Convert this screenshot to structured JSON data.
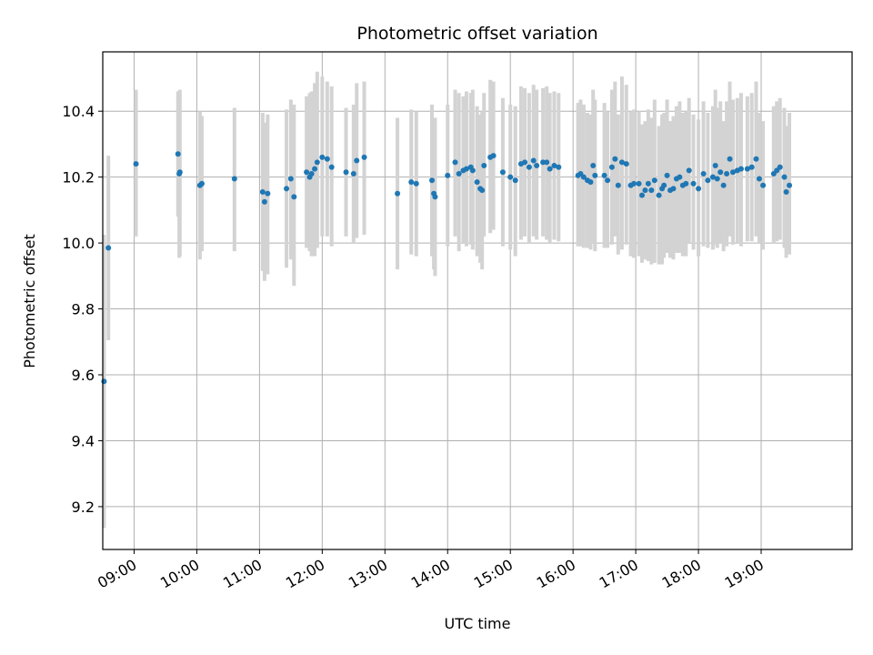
{
  "chart_data": {
    "type": "scatter",
    "title": "Photometric offset variation",
    "xlabel": "UTC time",
    "ylabel": "Photometric offset",
    "x_unit": "hours UTC",
    "xlim": [
      8.5,
      20.45
    ],
    "ylim": [
      9.07,
      10.58
    ],
    "x_ticks": [
      9,
      10,
      11,
      12,
      13,
      14,
      15,
      16,
      17,
      18,
      19
    ],
    "x_tick_labels": [
      "09:00",
      "10:00",
      "11:00",
      "12:00",
      "13:00",
      "14:00",
      "15:00",
      "16:00",
      "17:00",
      "18:00",
      "19:00"
    ],
    "y_ticks": [
      9.2,
      9.4,
      9.6,
      9.8,
      10.0,
      10.2,
      10.4
    ],
    "y_tick_labels": [
      "9.2",
      "9.4",
      "9.6",
      "9.8",
      "10.0",
      "10.2",
      "10.4"
    ],
    "grid": true,
    "colors": {
      "points": "#1f77b4",
      "errorbars": "#d3d3d3",
      "grid": "#b0b0b0"
    },
    "series": [
      {
        "x": [
          8.52,
          8.59,
          9.03,
          9.7,
          9.72,
          9.73,
          10.05,
          10.08,
          10.6,
          11.05,
          11.08,
          11.13,
          11.43,
          11.5,
          11.55,
          11.75,
          11.8,
          11.83,
          11.88,
          11.92,
          12.0,
          12.08,
          12.15,
          12.38,
          12.5,
          12.55,
          12.67,
          13.2,
          13.42,
          13.5,
          13.75,
          13.78,
          13.8,
          14.0,
          14.12,
          14.18,
          14.25,
          14.3,
          14.37,
          14.4,
          14.47,
          14.52,
          14.55,
          14.58,
          14.68,
          14.73,
          14.88,
          15.0,
          15.08,
          15.17,
          15.23,
          15.3,
          15.37,
          15.42,
          15.52,
          15.58,
          15.63,
          15.7,
          15.77,
          16.08,
          16.12,
          16.17,
          16.23,
          16.28,
          16.32,
          16.35,
          16.5,
          16.55,
          16.62,
          16.67,
          16.72,
          16.78,
          16.85,
          16.92,
          16.97,
          17.05,
          17.1,
          17.15,
          17.2,
          17.25,
          17.3,
          17.37,
          17.42,
          17.45,
          17.5,
          17.55,
          17.6,
          17.65,
          17.7,
          17.75,
          17.8,
          17.85,
          17.92,
          18.0,
          18.08,
          18.15,
          18.23,
          18.27,
          18.3,
          18.35,
          18.4,
          18.45,
          18.5,
          18.55,
          18.62,
          18.68,
          18.78,
          18.85,
          18.92,
          18.97,
          19.03,
          19.2,
          19.25,
          19.3,
          19.37,
          19.4,
          19.45
        ],
        "y": [
          9.58,
          9.985,
          10.24,
          10.27,
          10.21,
          10.215,
          10.175,
          10.18,
          10.195,
          10.155,
          10.125,
          10.15,
          10.165,
          10.195,
          10.14,
          10.215,
          10.2,
          10.21,
          10.225,
          10.245,
          10.26,
          10.255,
          10.23,
          10.215,
          10.21,
          10.25,
          10.26,
          10.15,
          10.185,
          10.18,
          10.19,
          10.15,
          10.14,
          10.205,
          10.245,
          10.21,
          10.22,
          10.225,
          10.23,
          10.22,
          10.185,
          10.165,
          10.16,
          10.235,
          10.26,
          10.265,
          10.215,
          10.2,
          10.19,
          10.24,
          10.245,
          10.23,
          10.25,
          10.235,
          10.245,
          10.245,
          10.225,
          10.235,
          10.23,
          10.205,
          10.21,
          10.2,
          10.19,
          10.185,
          10.235,
          10.205,
          10.205,
          10.19,
          10.23,
          10.255,
          10.175,
          10.245,
          10.24,
          10.175,
          10.18,
          10.18,
          10.145,
          10.16,
          10.18,
          10.16,
          10.19,
          10.145,
          10.165,
          10.175,
          10.205,
          10.16,
          10.165,
          10.195,
          10.2,
          10.175,
          10.18,
          10.22,
          10.18,
          10.165,
          10.21,
          10.19,
          10.2,
          10.235,
          10.195,
          10.215,
          10.175,
          10.21,
          10.255,
          10.215,
          10.22,
          10.225,
          10.225,
          10.23,
          10.255,
          10.195,
          10.175,
          10.21,
          10.22,
          10.23,
          10.2,
          10.155,
          10.175
        ],
        "err_low": [
          9.135,
          9.705,
          10.02,
          10.08,
          9.955,
          9.96,
          9.95,
          9.975,
          9.975,
          9.915,
          9.885,
          9.905,
          9.925,
          9.95,
          9.87,
          9.985,
          9.975,
          9.96,
          9.96,
          9.985,
          10.02,
          10.02,
          9.99,
          10.02,
          10.0,
          10.015,
          10.025,
          9.92,
          9.965,
          9.96,
          9.96,
          9.92,
          9.9,
          9.99,
          10.02,
          9.975,
          10.0,
          9.99,
          9.995,
          9.98,
          9.96,
          9.94,
          9.92,
          10.02,
          10.03,
          10.04,
          9.99,
          9.98,
          9.96,
          10.01,
          10.02,
          10.0,
          10.02,
          10.01,
          10.02,
          10.01,
          10.0,
          10.01,
          10.005,
          9.99,
          9.99,
          9.985,
          9.985,
          9.98,
          10.0,
          9.975,
          9.985,
          9.985,
          9.995,
          10.02,
          9.965,
          9.98,
          9.995,
          9.96,
          9.955,
          9.96,
          9.94,
          9.95,
          9.945,
          9.935,
          9.94,
          9.935,
          9.935,
          9.955,
          9.97,
          9.955,
          9.95,
          9.97,
          9.97,
          9.96,
          9.96,
          10.0,
          9.98,
          9.96,
          9.99,
          9.985,
          9.98,
          9.995,
          9.985,
          10.0,
          9.975,
          9.99,
          10.02,
          9.995,
          10.0,
          9.99,
          10.005,
          10.005,
          10.02,
          10.0,
          9.98,
          10.0,
          10.005,
          10.01,
          9.985,
          9.955,
          9.965
        ],
        "err_high": [
          10.025,
          10.265,
          10.465,
          10.46,
          10.46,
          10.465,
          10.4,
          10.385,
          10.41,
          10.395,
          10.365,
          10.39,
          10.405,
          10.435,
          10.42,
          10.445,
          10.455,
          10.46,
          10.485,
          10.52,
          10.505,
          10.49,
          10.475,
          10.41,
          10.42,
          10.485,
          10.49,
          10.38,
          10.405,
          10.4,
          10.42,
          10.375,
          10.38,
          10.42,
          10.465,
          10.455,
          10.445,
          10.46,
          10.455,
          10.465,
          10.415,
          10.39,
          10.4,
          10.455,
          10.495,
          10.49,
          10.44,
          10.42,
          10.415,
          10.475,
          10.47,
          10.455,
          10.48,
          10.465,
          10.47,
          10.475,
          10.455,
          10.46,
          10.455,
          10.425,
          10.435,
          10.42,
          10.395,
          10.39,
          10.465,
          10.435,
          10.425,
          10.4,
          10.465,
          10.49,
          10.39,
          10.505,
          10.48,
          10.4,
          10.405,
          10.4,
          10.36,
          10.37,
          10.405,
          10.38,
          10.435,
          10.355,
          10.39,
          10.395,
          10.435,
          10.37,
          10.385,
          10.415,
          10.43,
          10.395,
          10.4,
          10.44,
          10.39,
          10.375,
          10.43,
          10.395,
          10.415,
          10.465,
          10.41,
          10.43,
          10.37,
          10.43,
          10.49,
          10.435,
          10.44,
          10.455,
          10.445,
          10.455,
          10.49,
          10.395,
          10.37,
          10.415,
          10.43,
          10.44,
          10.41,
          10.355,
          10.395
        ]
      }
    ]
  }
}
